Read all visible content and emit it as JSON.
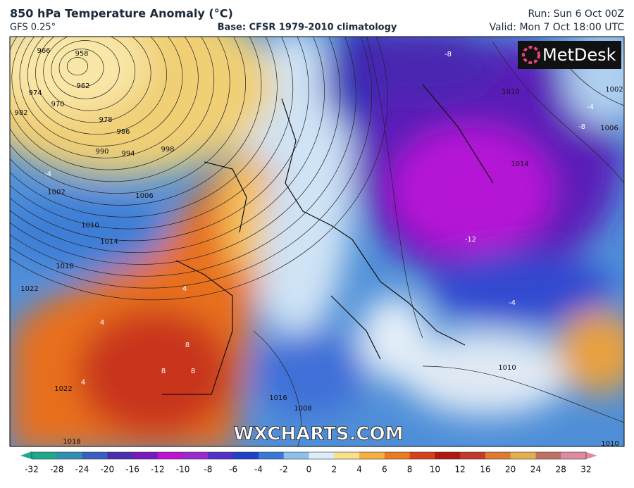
{
  "header": {
    "title": "850 hPa Temperature Anomaly (°C)",
    "model": "GFS 0.25°",
    "base": "Base: CFSR 1979-2010 climatology",
    "run": "Run: Sun 6 Oct 00Z",
    "valid": "Valid: Mon 7 Oct 18:00 UTC"
  },
  "logo": "MetDesk",
  "watermark": "WXCHARTS.COM",
  "isobar_labels": [
    966,
    958,
    962,
    974,
    970,
    982,
    978,
    986,
    990,
    994,
    998,
    1002,
    1006,
    1010,
    1014,
    1018,
    1022,
    1014,
    1010,
    1006,
    1002,
    1022,
    1018,
    1016,
    1008,
    1010,
    1010
  ],
  "anomaly_labels": [
    -4,
    -4,
    -8,
    -8,
    -12,
    -4,
    4,
    4,
    4,
    8,
    8,
    8
  ],
  "colorbar": {
    "ticks": [
      -32,
      -28,
      -24,
      -20,
      -16,
      -12,
      -10,
      -8,
      -6,
      -4,
      -2,
      0,
      2,
      4,
      6,
      8,
      10,
      12,
      16,
      20,
      24,
      28,
      32
    ]
  }
}
